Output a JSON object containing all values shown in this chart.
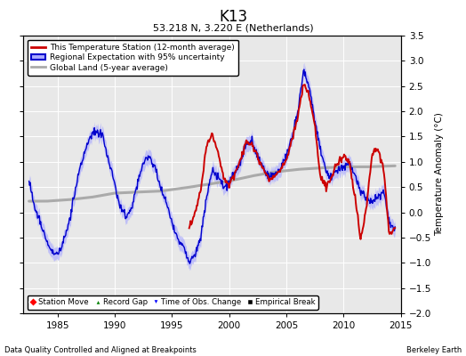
{
  "title": "K13",
  "subtitle": "53.218 N, 3.220 E (Netherlands)",
  "ylabel": "Temperature Anomaly (°C)",
  "xlabel_left": "Data Quality Controlled and Aligned at Breakpoints",
  "xlabel_right": "Berkeley Earth",
  "ylim": [
    -2,
    3.5
  ],
  "xlim": [
    1982,
    2015
  ],
  "xticks": [
    1985,
    1990,
    1995,
    2000,
    2005,
    2010,
    2015
  ],
  "yticks": [
    -2,
    -1.5,
    -1,
    -0.5,
    0,
    0.5,
    1,
    1.5,
    2,
    2.5,
    3,
    3.5
  ],
  "bg_color": "#e8e8e8",
  "grid_color": "white",
  "red_color": "#cc0000",
  "blue_color": "#0000cc",
  "blue_fill_color": "#aaaaff",
  "gray_color": "#aaaaaa",
  "legend_entries": [
    "This Temperature Station (12-month average)",
    "Regional Expectation with 95% uncertainty",
    "Global Land (5-year average)"
  ],
  "bottom_legend": [
    {
      "marker": "D",
      "color": "red",
      "label": "Station Move"
    },
    {
      "marker": "^",
      "color": "green",
      "label": "Record Gap"
    },
    {
      "marker": "v",
      "color": "blue",
      "label": "Time of Obs. Change"
    },
    {
      "marker": "s",
      "color": "black",
      "label": "Empirical Break"
    }
  ]
}
